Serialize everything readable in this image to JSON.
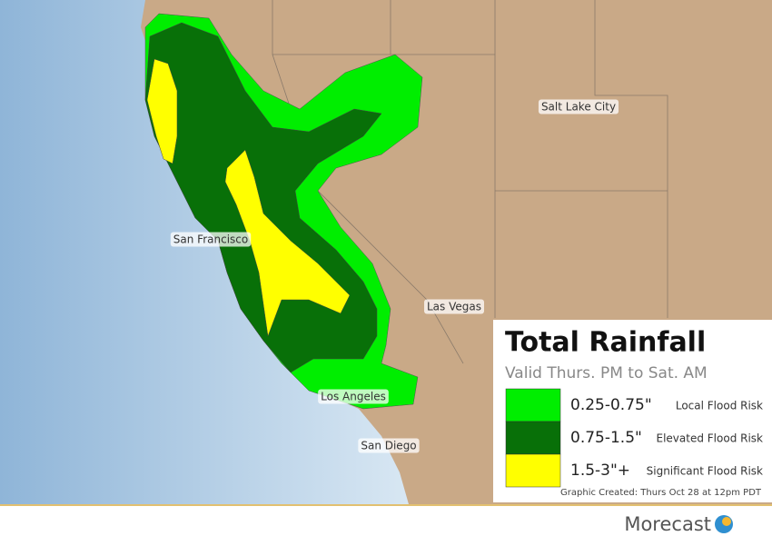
{
  "map": {
    "cities": [
      "Salt Lake City",
      "San Francisco",
      "Las Vegas",
      "Los Angeles",
      "San Diego"
    ]
  },
  "legend": {
    "title": "Total Rainfall",
    "subtitle": "Valid Thurs. PM to Sat. AM",
    "entries": [
      {
        "range": "0.25-0.75\"",
        "risk": "Local Flood Risk",
        "color": "#00ee00"
      },
      {
        "range": "0.75-1.5\"",
        "risk": "Elevated Flood Risk",
        "color": "#087008"
      },
      {
        "range": "1.5-3\"+",
        "risk": "Significant Flood Risk",
        "color": "#ffff00"
      }
    ],
    "note": "Graphic Created: Thurs Oct 28 at 12pm PDT"
  },
  "footer": {
    "brand": "Morecast"
  }
}
